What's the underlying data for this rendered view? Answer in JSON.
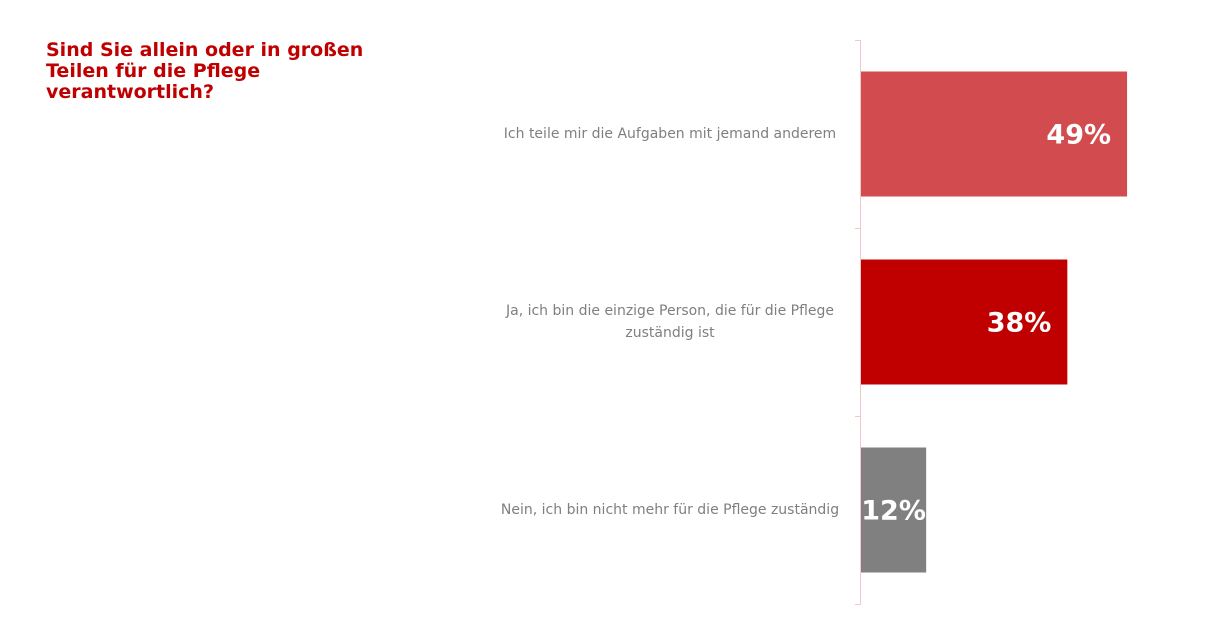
{
  "chart_data": {
    "type": "hbar",
    "title": "Sind Sie allein oder in großen Teilen für die Pflege verantwortlich?",
    "categories": [
      "Ich teile mir die Aufgaben mit jemand anderem",
      "Ja, ich bin die einzige Person, die für die Pflege zuständig ist",
      "Nein, ich bin nicht mehr für die Pflege zuständig"
    ],
    "values": [
      49,
      38,
      12
    ],
    "value_labels": [
      "49%",
      "38%",
      "12%"
    ],
    "colors": [
      "#d24b4f",
      "#c00000",
      "#808080"
    ]
  }
}
